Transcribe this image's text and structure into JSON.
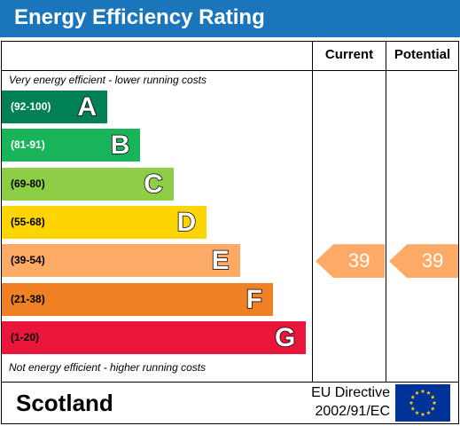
{
  "header": {
    "title": "Energy Efficiency Rating"
  },
  "columns": {
    "current": "Current",
    "potential": "Potential"
  },
  "notes": {
    "top": "Very energy efficient - lower running costs",
    "bottom": "Not energy efficient - higher running costs"
  },
  "chart_data": {
    "type": "bar",
    "title": "Energy Efficiency Rating",
    "categories": [
      "A",
      "B",
      "C",
      "D",
      "E",
      "F",
      "G"
    ],
    "ranges": [
      "(92-100)",
      "(81-91)",
      "(69-80)",
      "(55-68)",
      "(39-54)",
      "(21-38)",
      "(1-20)"
    ],
    "lower_bounds": [
      92,
      81,
      69,
      55,
      39,
      21,
      1
    ],
    "band_colors": [
      "#008054",
      "#19b459",
      "#8dce46",
      "#ffd500",
      "#fcaa65",
      "#ef8023",
      "#e9153b"
    ],
    "range_text_colors": [
      "#ffffff",
      "#ffffff",
      "#000000",
      "#000000",
      "#000000",
      "#000000",
      "#000000"
    ],
    "current": 39,
    "potential": 39,
    "current_band": "E",
    "potential_band": "E",
    "ylim": [
      1,
      100
    ]
  },
  "footer": {
    "region": "Scotland",
    "directive_line1": "EU Directive",
    "directive_line2": "2002/91/EC",
    "flag_icon": "eu-flag-icon",
    "flag_colors": {
      "background": "#003399",
      "stars": "#ffcc00"
    }
  }
}
